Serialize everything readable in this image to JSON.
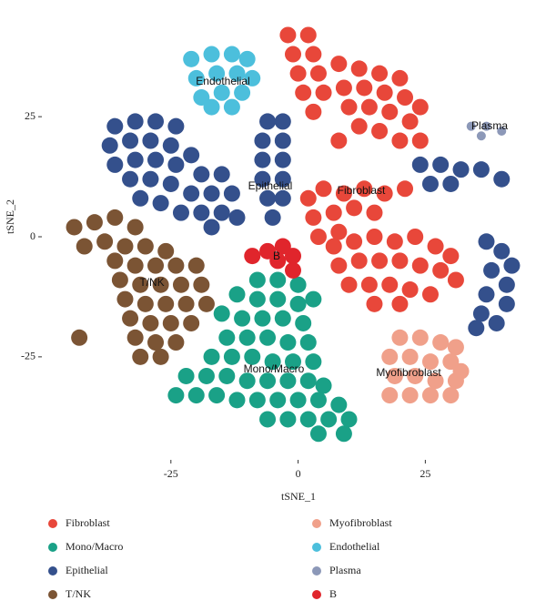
{
  "chart_data": {
    "type": "scatter",
    "xlabel": "tSNE_1",
    "ylabel": "tSNE_2",
    "xlim": [
      -50,
      48
    ],
    "ylim": [
      -45.5,
      45.5
    ],
    "xticks": [
      -25,
      0,
      25
    ],
    "yticks": [
      -25,
      0,
      25
    ],
    "annotations": [
      "Endothelial",
      "Plasma",
      "Epithelial",
      "Fibroblast",
      "B",
      "T/NK",
      "Mono/Macro",
      "Myofibroblast"
    ],
    "series": [
      {
        "name": "Fibroblast",
        "color": "#e8473a",
        "x": [
          -2,
          2,
          -1,
          3,
          0,
          4,
          1,
          5,
          3,
          8,
          12,
          16,
          20,
          9,
          13,
          17,
          21,
          24,
          10,
          14,
          18,
          22,
          12,
          16,
          20,
          24,
          8,
          2,
          5,
          9,
          13,
          17,
          21,
          3,
          7,
          11,
          15,
          4,
          8,
          7,
          11,
          15,
          19,
          23,
          27,
          30,
          8,
          12,
          16,
          20,
          24,
          28,
          31,
          10,
          14,
          18,
          22,
          26,
          15,
          20
        ],
        "y": [
          42,
          42,
          38,
          38,
          34,
          34,
          30,
          30,
          26,
          36,
          35,
          34,
          33,
          31,
          31,
          30,
          29,
          27,
          27,
          27,
          26,
          24,
          23,
          22,
          20,
          20,
          20,
          8,
          10,
          9,
          10,
          9,
          10,
          4,
          5,
          6,
          5,
          0,
          1,
          -2,
          -1,
          0,
          -1,
          0,
          -2,
          -4,
          -6,
          -5,
          -5,
          -5,
          -6,
          -7,
          -9,
          -10,
          -10,
          -10,
          -11,
          -12,
          -14,
          -14
        ]
      },
      {
        "name": "Mono/Macro",
        "color": "#1aa187",
        "x": [
          -8,
          -4,
          0,
          -12,
          -8,
          -4,
          0,
          3,
          -15,
          -11,
          -7,
          -3,
          1,
          -14,
          -10,
          -6,
          -2,
          2,
          -17,
          -13,
          -9,
          -5,
          -1,
          3,
          -22,
          -18,
          -14,
          -10,
          -6,
          -2,
          2,
          5,
          -24,
          -20,
          -16,
          -12,
          -8,
          -4,
          0,
          4,
          8,
          -6,
          -2,
          2,
          6,
          10,
          4,
          9
        ],
        "y": [
          -9,
          -9,
          -10,
          -12,
          -13,
          -13,
          -14,
          -13,
          -16,
          -17,
          -17,
          -17,
          -18,
          -21,
          -21,
          -21,
          -22,
          -22,
          -25,
          -25,
          -25,
          -26,
          -26,
          -26,
          -29,
          -29,
          -29,
          -30,
          -30,
          -30,
          -30,
          -31,
          -33,
          -33,
          -33,
          -34,
          -34,
          -34,
          -34,
          -34,
          -35,
          -38,
          -38,
          -38,
          -38,
          -38,
          -41,
          -41
        ]
      },
      {
        "name": "Epithelial",
        "color": "#34508c",
        "x": [
          -36,
          -32,
          -28,
          -24,
          -37,
          -33,
          -29,
          -25,
          -21,
          -36,
          -32,
          -28,
          -24,
          -19,
          -15,
          -33,
          -29,
          -25,
          -21,
          -17,
          -13,
          -31,
          -27,
          -23,
          -19,
          -15,
          -12,
          -17,
          -6,
          -3,
          -7,
          -3,
          -7,
          -3,
          -7,
          -3,
          -6,
          -3,
          -5,
          24,
          28,
          32,
          36,
          40,
          26,
          30,
          37,
          40,
          42,
          38,
          41,
          37,
          41,
          36,
          39,
          35
        ],
        "y": [
          23,
          24,
          24,
          23,
          19,
          20,
          20,
          19,
          17,
          15,
          16,
          16,
          15,
          13,
          13,
          12,
          12,
          11,
          9,
          9,
          9,
          8,
          7,
          5,
          5,
          5,
          4,
          2,
          24,
          24,
          20,
          20,
          16,
          16,
          12,
          12,
          8,
          8,
          4,
          15,
          15,
          14,
          14,
          12,
          11,
          11,
          -1,
          -3,
          -6,
          -7,
          -10,
          -12,
          -14,
          -16,
          -18,
          -19
        ]
      },
      {
        "name": "T/NK",
        "color": "#7b5434",
        "x": [
          -44,
          -40,
          -36,
          -32,
          -42,
          -38,
          -34,
          -30,
          -26,
          -36,
          -32,
          -28,
          -24,
          -20,
          -35,
          -31,
          -27,
          -23,
          -19,
          -34,
          -30,
          -26,
          -22,
          -18,
          -33,
          -29,
          -25,
          -21,
          -32,
          -28,
          -24,
          -31,
          -27,
          -43
        ],
        "y": [
          2,
          3,
          4,
          2,
          -2,
          -1,
          -2,
          -2,
          -3,
          -5,
          -6,
          -6,
          -6,
          -6,
          -9,
          -10,
          -10,
          -10,
          -10,
          -13,
          -14,
          -14,
          -14,
          -14,
          -17,
          -18,
          -18,
          -18,
          -21,
          -22,
          -22,
          -25,
          -25,
          -21
        ]
      },
      {
        "name": "Myofibroblast",
        "color": "#f0a08a",
        "x": [
          20,
          24,
          28,
          31,
          18,
          22,
          26,
          30,
          32,
          19,
          23,
          27,
          31,
          18,
          22,
          26,
          30
        ],
        "y": [
          -21,
          -21,
          -22,
          -23,
          -25,
          -25,
          -26,
          -26,
          -28,
          -29,
          -29,
          -30,
          -30,
          -33,
          -33,
          -33,
          -33
        ]
      },
      {
        "name": "Endothelial",
        "color": "#4cbfdc",
        "x": [
          -21,
          -17,
          -13,
          -10,
          -20,
          -16,
          -12,
          -9,
          -19,
          -15,
          -11,
          -17,
          -13
        ],
        "y": [
          37,
          38,
          38,
          37,
          33,
          34,
          34,
          33,
          29,
          30,
          30,
          27,
          27
        ]
      },
      {
        "name": "Plasma",
        "color": "#8c98b8",
        "x": [
          34,
          37,
          40,
          36
        ],
        "y": [
          23,
          23,
          22,
          21
        ]
      },
      {
        "name": "B",
        "color": "#e0252c",
        "x": [
          -9,
          -6,
          -3,
          -1,
          -4,
          -1
        ],
        "y": [
          -4,
          -3,
          -2,
          -4,
          -5,
          -7
        ]
      }
    ]
  }
}
